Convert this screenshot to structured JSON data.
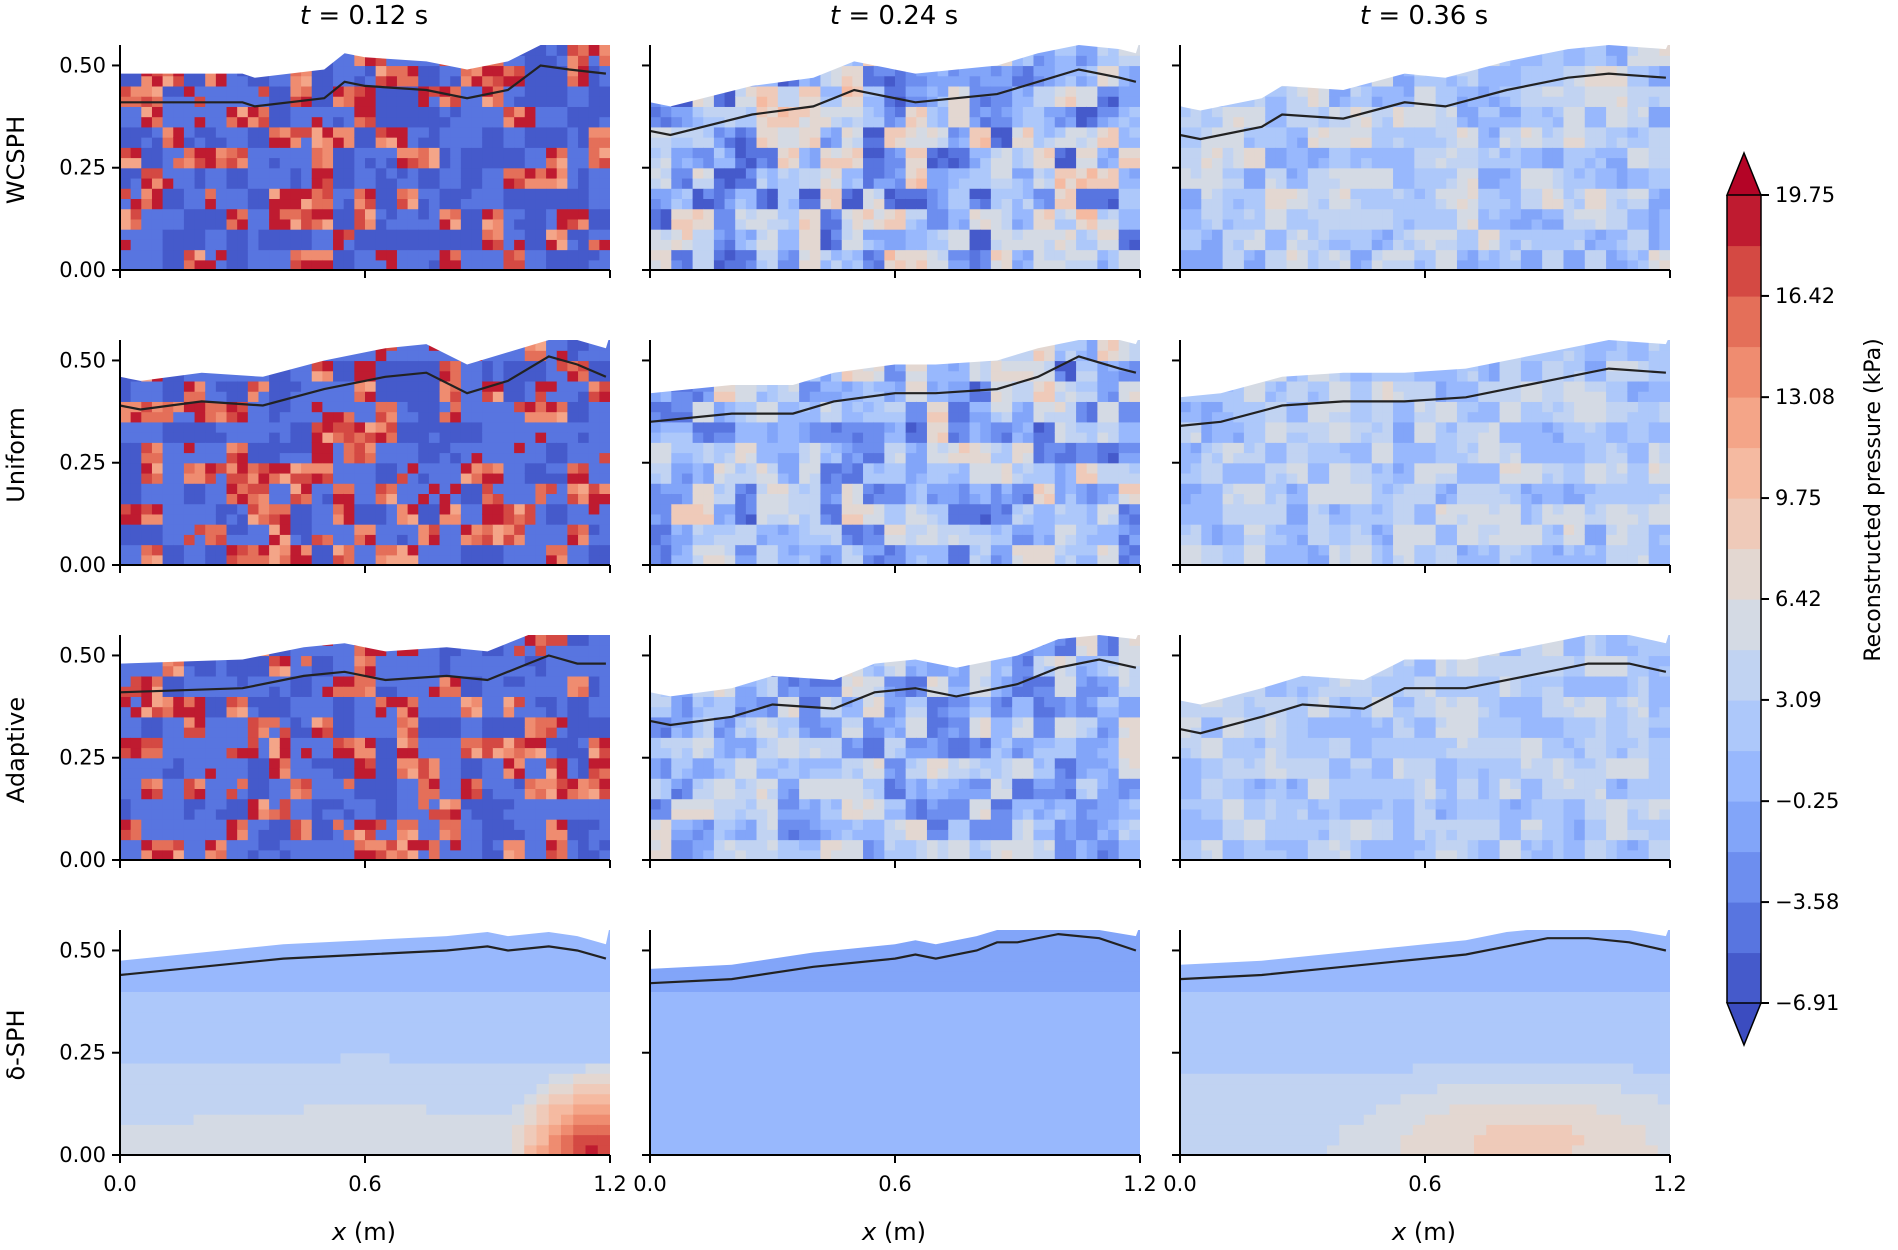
{
  "chart_data": {
    "type": "heatmap",
    "title": "",
    "colorbar": {
      "label": "Reconstructed pressure (kPa)",
      "ticks": [
        "19.75",
        "16.42",
        "13.08",
        "9.75",
        "6.42",
        "3.09",
        "−0.25",
        "−3.58",
        "−6.91"
      ],
      "tick_values": [
        19.75,
        16.42,
        13.08,
        9.75,
        6.42,
        3.09,
        -0.25,
        -3.58,
        -6.91
      ],
      "range": [
        -6.91,
        19.75
      ],
      "extend": "both",
      "colormap": "coolwarm",
      "low_color": "#3b4cc0",
      "high_color": "#b40426"
    },
    "columns": [
      {
        "title_var": "t",
        "title_value": " = 0.12 s"
      },
      {
        "title_var": "t",
        "title_value": " = 0.24 s"
      },
      {
        "title_var": "t",
        "title_value": " = 0.36 s"
      }
    ],
    "rows": [
      {
        "label": "WCSPH",
        "style": "noisy",
        "amp": 14.0,
        "bias": 0.0,
        "free_surface": [
          [
            [
              0.0,
              0.41
            ],
            [
              0.3,
              0.41
            ],
            [
              0.33,
              0.4
            ],
            [
              0.5,
              0.42
            ],
            [
              0.55,
              0.46
            ],
            [
              0.6,
              0.45
            ],
            [
              0.75,
              0.44
            ],
            [
              0.85,
              0.42
            ],
            [
              0.95,
              0.44
            ],
            [
              1.03,
              0.5
            ],
            [
              1.1,
              0.49
            ],
            [
              1.19,
              0.48
            ]
          ],
          [
            [
              0.0,
              0.34
            ],
            [
              0.05,
              0.33
            ],
            [
              0.25,
              0.38
            ],
            [
              0.4,
              0.4
            ],
            [
              0.5,
              0.44
            ],
            [
              0.65,
              0.41
            ],
            [
              0.85,
              0.43
            ],
            [
              0.95,
              0.46
            ],
            [
              1.05,
              0.49
            ],
            [
              1.15,
              0.47
            ],
            [
              1.19,
              0.46
            ]
          ],
          [
            [
              0.0,
              0.33
            ],
            [
              0.05,
              0.32
            ],
            [
              0.2,
              0.35
            ],
            [
              0.25,
              0.38
            ],
            [
              0.4,
              0.37
            ],
            [
              0.55,
              0.41
            ],
            [
              0.65,
              0.4
            ],
            [
              0.8,
              0.44
            ],
            [
              0.95,
              0.47
            ],
            [
              1.05,
              0.48
            ],
            [
              1.19,
              0.47
            ]
          ]
        ]
      },
      {
        "label": "Uniform",
        "style": "noisy",
        "amp": 12.0,
        "bias": 0.0,
        "free_surface": [
          [
            [
              0.0,
              0.39
            ],
            [
              0.05,
              0.38
            ],
            [
              0.2,
              0.4
            ],
            [
              0.35,
              0.39
            ],
            [
              0.5,
              0.43
            ],
            [
              0.65,
              0.46
            ],
            [
              0.75,
              0.47
            ],
            [
              0.85,
              0.42
            ],
            [
              0.95,
              0.45
            ],
            [
              1.05,
              0.51
            ],
            [
              1.12,
              0.49
            ],
            [
              1.19,
              0.46
            ]
          ],
          [
            [
              0.0,
              0.35
            ],
            [
              0.2,
              0.37
            ],
            [
              0.35,
              0.37
            ],
            [
              0.45,
              0.4
            ],
            [
              0.6,
              0.42
            ],
            [
              0.7,
              0.42
            ],
            [
              0.85,
              0.43
            ],
            [
              0.95,
              0.46
            ],
            [
              1.05,
              0.51
            ],
            [
              1.15,
              0.48
            ],
            [
              1.19,
              0.47
            ]
          ],
          [
            [
              0.0,
              0.34
            ],
            [
              0.1,
              0.35
            ],
            [
              0.25,
              0.39
            ],
            [
              0.4,
              0.4
            ],
            [
              0.55,
              0.4
            ],
            [
              0.7,
              0.41
            ],
            [
              0.85,
              0.44
            ],
            [
              1.0,
              0.47
            ],
            [
              1.05,
              0.48
            ],
            [
              1.19,
              0.47
            ]
          ]
        ]
      },
      {
        "label": "Adaptive",
        "style": "noisy",
        "amp": 10.0,
        "bias": 0.0,
        "free_surface": [
          [
            [
              0.0,
              0.41
            ],
            [
              0.3,
              0.42
            ],
            [
              0.45,
              0.45
            ],
            [
              0.55,
              0.46
            ],
            [
              0.65,
              0.44
            ],
            [
              0.8,
              0.45
            ],
            [
              0.9,
              0.44
            ],
            [
              1.0,
              0.48
            ],
            [
              1.05,
              0.5
            ],
            [
              1.12,
              0.48
            ],
            [
              1.19,
              0.48
            ]
          ],
          [
            [
              0.0,
              0.34
            ],
            [
              0.05,
              0.33
            ],
            [
              0.2,
              0.35
            ],
            [
              0.3,
              0.38
            ],
            [
              0.45,
              0.37
            ],
            [
              0.55,
              0.41
            ],
            [
              0.65,
              0.42
            ],
            [
              0.75,
              0.4
            ],
            [
              0.9,
              0.43
            ],
            [
              1.0,
              0.47
            ],
            [
              1.1,
              0.49
            ],
            [
              1.19,
              0.47
            ]
          ],
          [
            [
              0.0,
              0.32
            ],
            [
              0.05,
              0.31
            ],
            [
              0.2,
              0.35
            ],
            [
              0.3,
              0.38
            ],
            [
              0.45,
              0.37
            ],
            [
              0.55,
              0.42
            ],
            [
              0.7,
              0.42
            ],
            [
              0.85,
              0.45
            ],
            [
              1.0,
              0.48
            ],
            [
              1.1,
              0.48
            ],
            [
              1.19,
              0.46
            ]
          ]
        ]
      },
      {
        "label": "δ-SPH",
        "style": "smooth",
        "free_surface": [
          [
            [
              0.0,
              0.44
            ],
            [
              0.2,
              0.46
            ],
            [
              0.4,
              0.48
            ],
            [
              0.6,
              0.49
            ],
            [
              0.8,
              0.5
            ],
            [
              0.9,
              0.51
            ],
            [
              0.95,
              0.5
            ],
            [
              1.05,
              0.51
            ],
            [
              1.12,
              0.5
            ],
            [
              1.19,
              0.48
            ]
          ],
          [
            [
              0.0,
              0.42
            ],
            [
              0.2,
              0.43
            ],
            [
              0.4,
              0.46
            ],
            [
              0.6,
              0.48
            ],
            [
              0.65,
              0.49
            ],
            [
              0.7,
              0.48
            ],
            [
              0.8,
              0.5
            ],
            [
              0.85,
              0.52
            ],
            [
              0.9,
              0.52
            ],
            [
              1.0,
              0.54
            ],
            [
              1.1,
              0.53
            ],
            [
              1.19,
              0.5
            ]
          ],
          [
            [
              0.0,
              0.43
            ],
            [
              0.2,
              0.44
            ],
            [
              0.4,
              0.46
            ],
            [
              0.6,
              0.48
            ],
            [
              0.7,
              0.49
            ],
            [
              0.8,
              0.51
            ],
            [
              0.85,
              0.52
            ],
            [
              0.9,
              0.53
            ],
            [
              1.0,
              0.53
            ],
            [
              1.1,
              0.52
            ],
            [
              1.19,
              0.5
            ]
          ]
        ]
      }
    ],
    "x_ticks": [
      "0.0",
      "0.6",
      "1.2"
    ],
    "x_tick_values": [
      0.0,
      0.6,
      1.2
    ],
    "y_ticks": [
      "0.50",
      "0.25",
      "0.00"
    ],
    "y_tick_values": [
      0.5,
      0.25,
      0.0
    ],
    "xlim": [
      0.0,
      1.2
    ],
    "ylim": [
      0.0,
      0.55
    ],
    "xlabel_var": "x",
    "xlabel_unit": " (m)"
  }
}
